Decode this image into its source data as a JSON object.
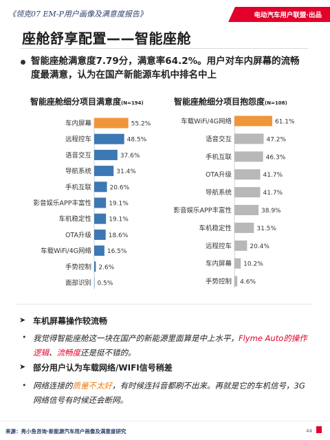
{
  "header": {
    "report_title": "《领克07 EM-P用户画像及满意度报告》",
    "brand": "电动汽车用户联盟·出品"
  },
  "page_title": "座舱舒享配置——智能座舱",
  "summary": "智能座舱满意度7.79分，满意率64.2%。用户对车内屏幕的流畅度最满意，认为在国产新能源车机中排名中上",
  "colors": {
    "brand_red": "#e3002b",
    "highlight_bar": "#f0963a",
    "blue_bar": "#3c78b4",
    "grey_bar": "#b8b8b8"
  },
  "chart_data": [
    {
      "type": "bar",
      "orientation": "horizontal",
      "title": "智能座舱细分项目满意度",
      "sample": "(N=194)",
      "unit": "%",
      "categories": [
        "车内屏幕",
        "远程控车",
        "语音交互",
        "导航系统",
        "手机互联",
        "影音娱乐APP丰富性",
        "车机稳定性",
        "OTA升级",
        "车载WiFi/4G网络",
        "手势控制",
        "面部识别"
      ],
      "values": [
        55.2,
        48.5,
        37.6,
        31.4,
        20.6,
        19.1,
        19.1,
        18.6,
        16.5,
        2.6,
        0.5
      ],
      "labels": [
        "55.2%",
        "48.5%",
        "37.6%",
        "31.4%",
        "20.6%",
        "19.1%",
        "19.1%",
        "18.6%",
        "16.5%",
        "2.6%",
        "0.5%"
      ],
      "highlight_index": 0
    },
    {
      "type": "bar",
      "orientation": "horizontal",
      "title": "智能座舱细分项目抱怨度",
      "sample": "(N=108)",
      "unit": "%",
      "categories": [
        "车载WiFi/4G网络",
        "语音交互",
        "手机互联",
        "OTA升级",
        "导航系统",
        "影音娱乐APP丰富性",
        "车机稳定性",
        "远程控车",
        "车内屏幕",
        "手势控制"
      ],
      "values": [
        61.1,
        47.2,
        46.3,
        41.7,
        41.7,
        38.9,
        31.5,
        20.4,
        10.2,
        4.6
      ],
      "labels": [
        "61.1%",
        "47.2%",
        "46.3%",
        "41.7%",
        "41.7%",
        "38.9%",
        "31.5%",
        "20.4%",
        "10.2%",
        "4.6%"
      ],
      "highlight_index": 0
    }
  ],
  "comments": {
    "section1": {
      "heading": "车机屏幕操作较流畅",
      "quote_a": "我觉得智能座舱这一块在国产的新能源里面算是中上水平，",
      "quote_b": "Flyme Auto的操作逻辑",
      "quote_c": "、",
      "quote_d": "流畅度",
      "quote_e": "还是挺不错的。"
    },
    "section2": {
      "heading": "部分用户认为车载网络/WIFI信号稍差",
      "quote_a": "网络连接的",
      "quote_b": "质量不太好",
      "quote_c": "，有时候连抖音都刷不出来。再就是它的车机信号，3G网络信号有时候还会断网。"
    }
  },
  "footer": {
    "source": "来源：亮小鱼咨询·新能源汽车用户画像及满意度研究",
    "page": "44"
  }
}
